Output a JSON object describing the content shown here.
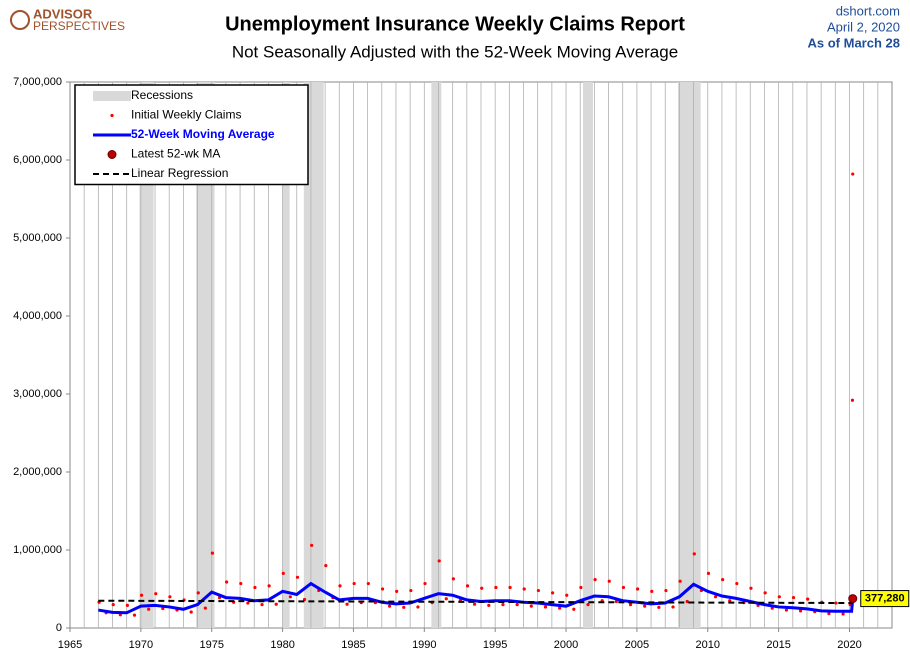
{
  "chart_data": {
    "type": "combo",
    "title": "Unemployment Insurance Weekly Claims Report",
    "subtitle": "Not Seasonally Adjusted with the 52-Week Moving Average",
    "logo": [
      "ADVISOR",
      "PERSPECTIVES"
    ],
    "source": "dshort.com",
    "date": "April 2, 2020",
    "note": "As of March 28",
    "xlim": [
      1965,
      2023
    ],
    "xticks": [
      1965,
      1970,
      1975,
      1980,
      1985,
      1990,
      1995,
      2000,
      2005,
      2010,
      2015,
      2020
    ],
    "ylim": [
      0,
      7000000
    ],
    "yticks": [
      0,
      {
        "value": 1000000,
        "label": "1,000,000"
      },
      {
        "value": 2000000,
        "label": "2,000,000"
      },
      {
        "value": 3000000,
        "label": "3,000,000"
      },
      {
        "value": 4000000,
        "label": "4,000,000"
      },
      {
        "value": 5000000,
        "label": "5,000,000"
      },
      {
        "value": 6000000,
        "label": "6,000,000"
      },
      {
        "value": 7000000,
        "label": "7,000,000"
      }
    ],
    "grid": true,
    "legend": "top-left",
    "recessions": {
      "name": "Recessions",
      "color": "#d9d9d9",
      "spans": [
        [
          1969.9,
          1970.9
        ],
        [
          1973.9,
          1975.2
        ],
        [
          1980.0,
          1980.5
        ],
        [
          1981.5,
          1982.9
        ],
        [
          1990.5,
          1991.2
        ],
        [
          2001.2,
          2001.9
        ],
        [
          2007.9,
          2009.5
        ]
      ]
    },
    "series": [
      {
        "name": "Initial Weekly Claims",
        "kind": "scatter",
        "color": "#ff0000",
        "x": [
          1967.05,
          1967.55,
          1968.05,
          1968.55,
          1969.05,
          1969.55,
          1970.05,
          1970.55,
          1971.05,
          1971.55,
          1972.05,
          1972.55,
          1973.05,
          1973.55,
          1974.05,
          1974.55,
          1975.05,
          1975.55,
          1976.05,
          1976.55,
          1977.05,
          1977.55,
          1978.05,
          1978.55,
          1979.05,
          1979.55,
          1980.05,
          1980.55,
          1981.05,
          1981.55,
          1982.05,
          1982.55,
          1983.05,
          1983.55,
          1984.05,
          1984.55,
          1985.05,
          1985.55,
          1986.05,
          1986.55,
          1987.05,
          1987.55,
          1988.05,
          1988.55,
          1989.05,
          1989.55,
          1990.05,
          1990.55,
          1991.05,
          1991.55,
          1992.05,
          1992.55,
          1993.05,
          1993.55,
          1994.05,
          1994.55,
          1995.05,
          1995.55,
          1996.05,
          1996.55,
          1997.05,
          1997.55,
          1998.05,
          1998.55,
          1999.05,
          1999.55,
          2000.05,
          2000.55,
          2001.05,
          2001.55,
          2002.05,
          2002.55,
          2003.05,
          2003.55,
          2004.05,
          2004.55,
          2005.05,
          2005.55,
          2006.05,
          2006.55,
          2007.05,
          2007.55,
          2008.05,
          2008.55,
          2009.05,
          2009.55,
          2010.05,
          2010.55,
          2011.05,
          2011.55,
          2012.05,
          2012.55,
          2013.05,
          2013.55,
          2014.05,
          2014.55,
          2015.05,
          2015.55,
          2016.05,
          2016.55,
          2017.05,
          2017.55,
          2018.05,
          2018.55,
          2019.05,
          2019.55,
          2020.05,
          2020.21,
          2020.23
        ],
        "values": [
          330000,
          195000,
          300000,
          170000,
          290000,
          165000,
          420000,
          240000,
          440000,
          250000,
          400000,
          230000,
          360000,
          205000,
          450000,
          255000,
          960000,
          390000,
          590000,
          330000,
          570000,
          320000,
          520000,
          300000,
          540000,
          305000,
          700000,
          400000,
          650000,
          365000,
          1060000,
          480000,
          800000,
          390000,
          540000,
          305000,
          570000,
          325000,
          570000,
          325000,
          500000,
          280000,
          470000,
          265000,
          480000,
          270000,
          570000,
          325000,
          860000,
          375000,
          630000,
          355000,
          540000,
          305000,
          510000,
          290000,
          520000,
          300000,
          520000,
          300000,
          500000,
          280000,
          480000,
          270000,
          450000,
          255000,
          420000,
          240000,
          520000,
          300000,
          620000,
          350000,
          600000,
          340000,
          520000,
          300000,
          500000,
          280000,
          470000,
          265000,
          480000,
          270000,
          600000,
          340000,
          950000,
          480000,
          700000,
          400000,
          620000,
          350000,
          570000,
          325000,
          510000,
          290000,
          450000,
          255000,
          400000,
          230000,
          390000,
          220000,
          370000,
          210000,
          330000,
          185000,
          320000,
          180000,
          300000,
          2920000,
          5820000
        ]
      },
      {
        "name": "52-Week Moving Average",
        "kind": "line",
        "color": "#0000ff",
        "x": [
          1967,
          1968,
          1969,
          1970,
          1971,
          1972,
          1973,
          1974,
          1975,
          1976,
          1977,
          1978,
          1979,
          1980,
          1981,
          1982,
          1983,
          1984,
          1985,
          1986,
          1987,
          1988,
          1989,
          1990,
          1991,
          1992,
          1993,
          1994,
          1995,
          1996,
          1997,
          1998,
          1999,
          2000,
          2001,
          2002,
          2003,
          2004,
          2005,
          2006,
          2007,
          2008,
          2009,
          2010,
          2011,
          2012,
          2013,
          2014,
          2015,
          2016,
          2017,
          2018,
          2019,
          2020.15,
          2020.23
        ],
        "values": [
          230000,
          200000,
          195000,
          280000,
          290000,
          270000,
          240000,
          300000,
          460000,
          390000,
          380000,
          350000,
          360000,
          470000,
          430000,
          570000,
          460000,
          360000,
          380000,
          380000,
          330000,
          310000,
          320000,
          380000,
          440000,
          420000,
          360000,
          340000,
          350000,
          350000,
          330000,
          320000,
          300000,
          280000,
          350000,
          410000,
          400000,
          350000,
          330000,
          310000,
          320000,
          400000,
          560000,
          470000,
          410000,
          380000,
          340000,
          300000,
          270000,
          260000,
          245000,
          220000,
          215000,
          215000,
          377280
        ]
      },
      {
        "name": "Latest 52-wk MA",
        "kind": "point",
        "color": "#c00000",
        "x": [
          2020.23
        ],
        "values": [
          377280
        ],
        "value_labels": [
          "377,280"
        ]
      },
      {
        "name": "Linear Regression",
        "kind": "dashed",
        "color": "#000000",
        "x": [
          1967,
          2020.25
        ],
        "values": [
          350000,
          320000
        ]
      }
    ]
  }
}
